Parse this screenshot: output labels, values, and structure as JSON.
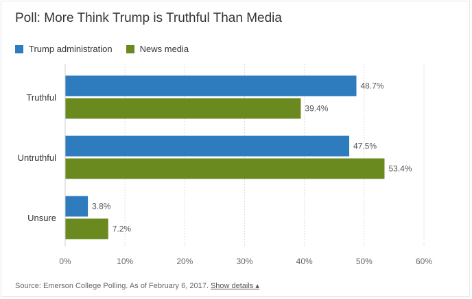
{
  "page": {
    "source_text": "Source: Emerson College Polling. As of February 6, 2017.",
    "details_link": "Show details",
    "details_arrow": "▴"
  },
  "colors": {
    "trump": "#2e7bbd",
    "media": "#6a8a1f",
    "grid": "#dcdcdc"
  },
  "chart_data": {
    "type": "bar",
    "orientation": "horizontal",
    "title": "Poll: More Think Trump is Truthful Than Media",
    "categories": [
      "Truthful",
      "Untruthful",
      "Unsure"
    ],
    "series": [
      {
        "name": "Trump administration",
        "values": [
          48.7,
          47.5,
          3.8
        ],
        "labels": [
          "48.7%",
          "47.5%",
          "3.8%"
        ]
      },
      {
        "name": "News media",
        "values": [
          39.4,
          53.4,
          7.2
        ],
        "labels": [
          "39.4%",
          "53.4%",
          "7.2%"
        ]
      }
    ],
    "xlim": [
      0,
      60
    ],
    "xticks": [
      0,
      10,
      20,
      30,
      40,
      50,
      60
    ],
    "xtick_labels": [
      "0%",
      "10%",
      "20%",
      "30%",
      "40%",
      "50%",
      "60%"
    ],
    "grid": true,
    "legend": "top-left"
  }
}
